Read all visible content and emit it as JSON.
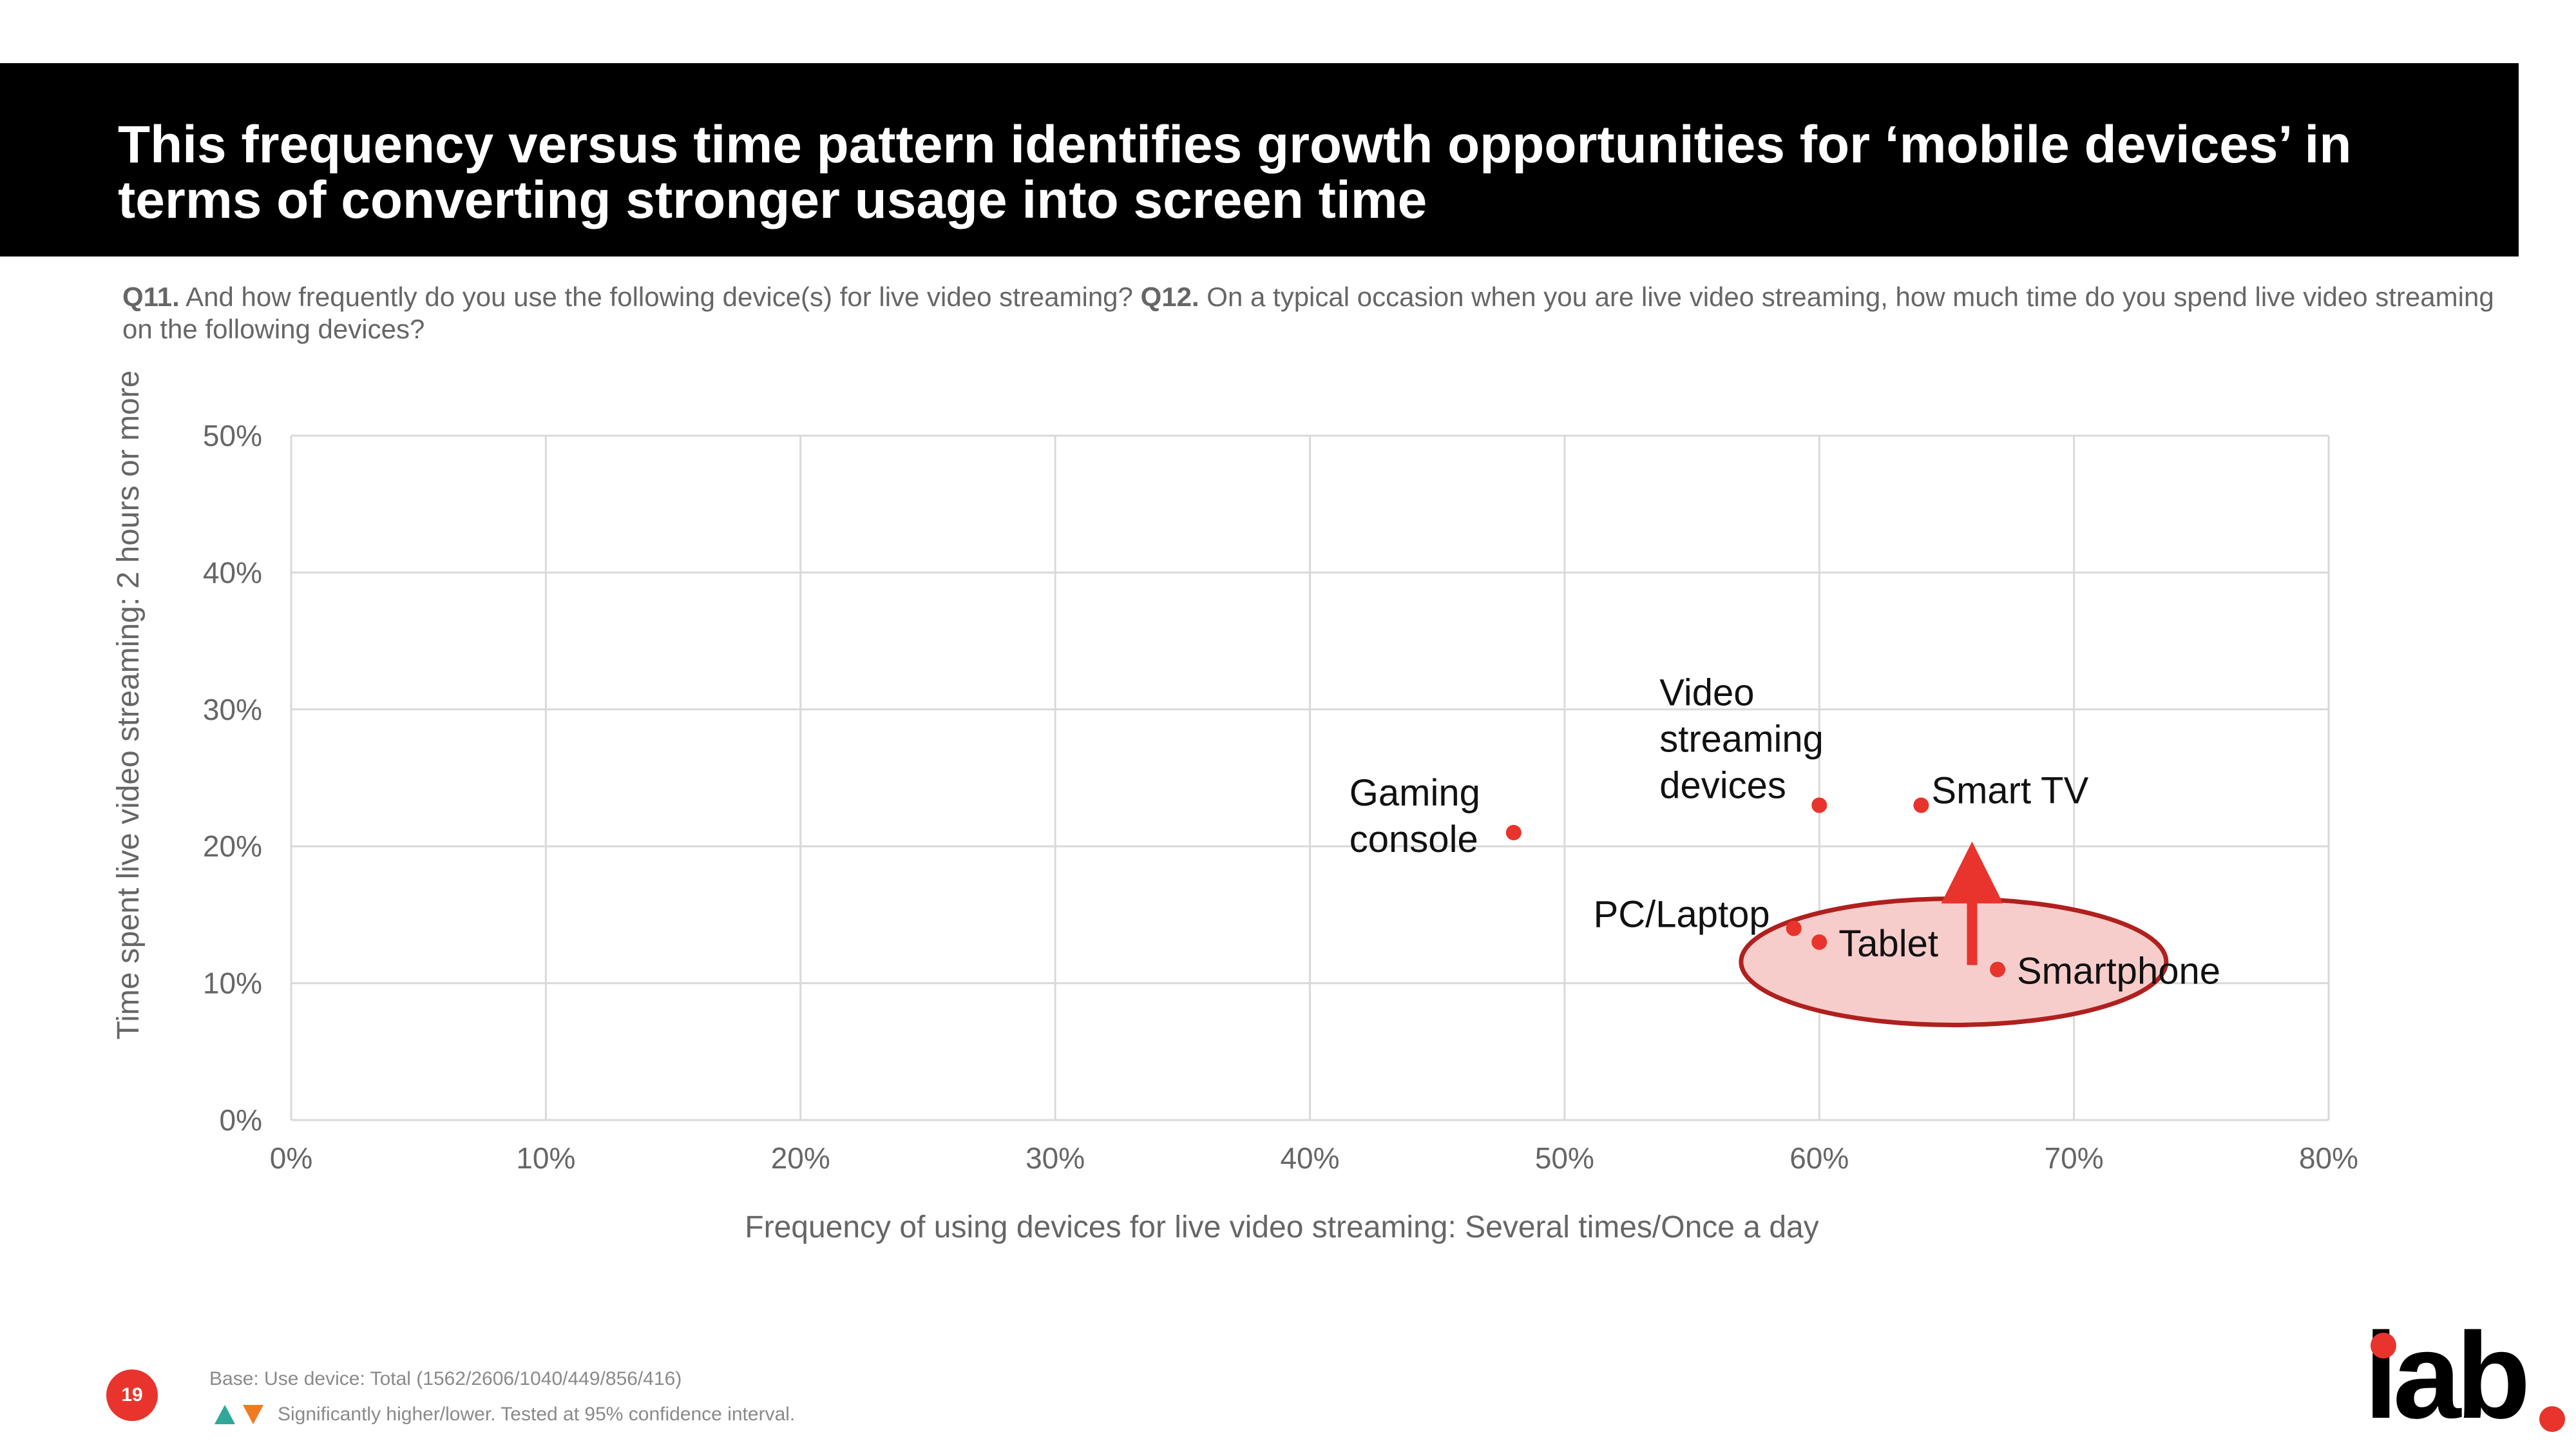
{
  "header": {
    "title": "This frequency versus time pattern identifies growth opportunities for ‘mobile devices’ in terms of converting stronger usage into screen time"
  },
  "question": {
    "q11_label": "Q11.",
    "q11_text": " And how frequently do you use the following device(s) for live video streaming? ",
    "q12_label": "Q12.",
    "q12_text": " On a typical occasion when you are live video streaming, how much time do you spend live video streaming on the following devices?"
  },
  "chart_data": {
    "type": "scatter",
    "xlabel": "Frequency of using devices for live video streaming: Several times/Once a day",
    "ylabel": "Time spent live video streaming: 2 hours or more",
    "xlim": [
      0,
      80
    ],
    "ylim": [
      0,
      50
    ],
    "x_ticks": [
      "0%",
      "10%",
      "20%",
      "30%",
      "40%",
      "50%",
      "60%",
      "70%",
      "80%"
    ],
    "y_ticks": [
      "0%",
      "10%",
      "20%",
      "30%",
      "40%",
      "50%"
    ],
    "grid": true,
    "points": [
      {
        "label": "Gaming console",
        "x": 48,
        "y": 21
      },
      {
        "label": "Video streaming devices",
        "x": 60,
        "y": 23
      },
      {
        "label": "Smart TV",
        "x": 64,
        "y": 23
      },
      {
        "label": "PC/Laptop",
        "x": 59,
        "y": 14
      },
      {
        "label": "Tablet",
        "x": 60,
        "y": 13
      },
      {
        "label": "Smartphone",
        "x": 67,
        "y": 11
      }
    ],
    "highlight_group": [
      "PC/Laptop",
      "Tablet",
      "Smartphone"
    ],
    "point_color": "#e8342c",
    "highlight_fill": "#f7cdcb",
    "highlight_stroke": "#b0201e",
    "arrow_color": "#e8342c"
  },
  "footer": {
    "page_number": "19",
    "base_note": "Base: Use device: Total (1562/2606/1040/449/856/416)",
    "sig_note": "Significantly higher/lower. Tested at 95% confidence interval.",
    "logo_text": "iab"
  }
}
